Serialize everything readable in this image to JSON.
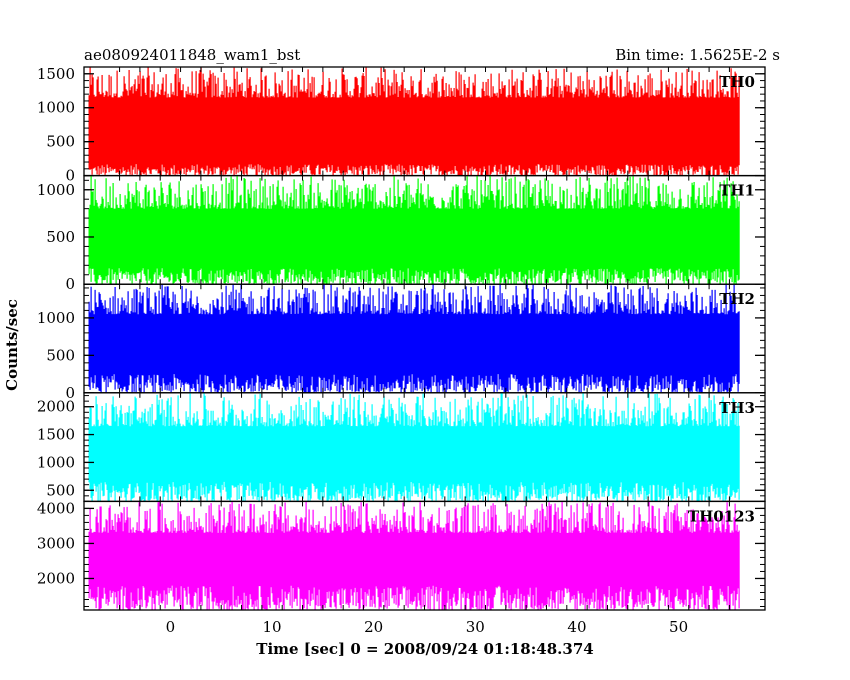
{
  "header": {
    "left_title": "ae080924011848_wam1_bst",
    "right_title": "Bin time: 1.5625E-2 s"
  },
  "chart_data": {
    "type": "line",
    "title": "ae080924011848_wam1_bst",
    "subtitle": "Bin time: 1.5625E-2 s",
    "xlabel": "Time [sec] 0 = 2008/09/24 01:18:48.374",
    "ylabel": "Counts/sec",
    "xlim": [
      -8.5,
      58.5
    ],
    "x_range_data": [
      -8,
      56
    ],
    "x_ticks": [
      0,
      10,
      20,
      30,
      40,
      50
    ],
    "x_tick_labels": [
      "0",
      "10",
      "20",
      "30",
      "40",
      "50"
    ],
    "grid": false,
    "panels": [
      {
        "label": "TH0",
        "color": "#ff0000",
        "ylim": [
          0,
          1600
        ],
        "y_ticks": [
          0,
          500,
          1000,
          1500
        ],
        "y_tick_labels": [
          "0",
          "500",
          "1000",
          "1500"
        ],
        "low_range": [
          0,
          170
        ],
        "high_range": [
          1150,
          1600
        ],
        "mean": 620
      },
      {
        "label": "TH1",
        "color": "#00ff00",
        "ylim": [
          0,
          1150
        ],
        "y_ticks": [
          0,
          500,
          1000
        ],
        "y_tick_labels": [
          "0",
          "500",
          "1000"
        ],
        "low_range": [
          0,
          170
        ],
        "high_range": [
          800,
          1150
        ],
        "mean": 520
      },
      {
        "label": "TH2",
        "color": "#0000ff",
        "ylim": [
          0,
          1450
        ],
        "y_ticks": [
          0,
          500,
          1000
        ],
        "y_tick_labels": [
          "0",
          "500",
          "1000"
        ],
        "low_range": [
          0,
          250
        ],
        "high_range": [
          1050,
          1450
        ],
        "mean": 650
      },
      {
        "label": "TH3",
        "color": "#00ffff",
        "ylim": [
          300,
          2250
        ],
        "y_ticks": [
          500,
          1000,
          1500,
          2000
        ],
        "y_tick_labels": [
          "500",
          "1000",
          "1500",
          "2000"
        ],
        "low_range": [
          300,
          650
        ],
        "high_range": [
          1650,
          2250
        ],
        "mean": 1150
      },
      {
        "label": "TH0123",
        "color": "#ff00ff",
        "ylim": [
          1100,
          4200
        ],
        "y_ticks": [
          2000,
          3000,
          4000
        ],
        "y_tick_labels": [
          "2000",
          "3000",
          "4000"
        ],
        "low_range": [
          1100,
          1800
        ],
        "high_range": [
          3300,
          4200
        ],
        "mean": 2800
      }
    ]
  }
}
